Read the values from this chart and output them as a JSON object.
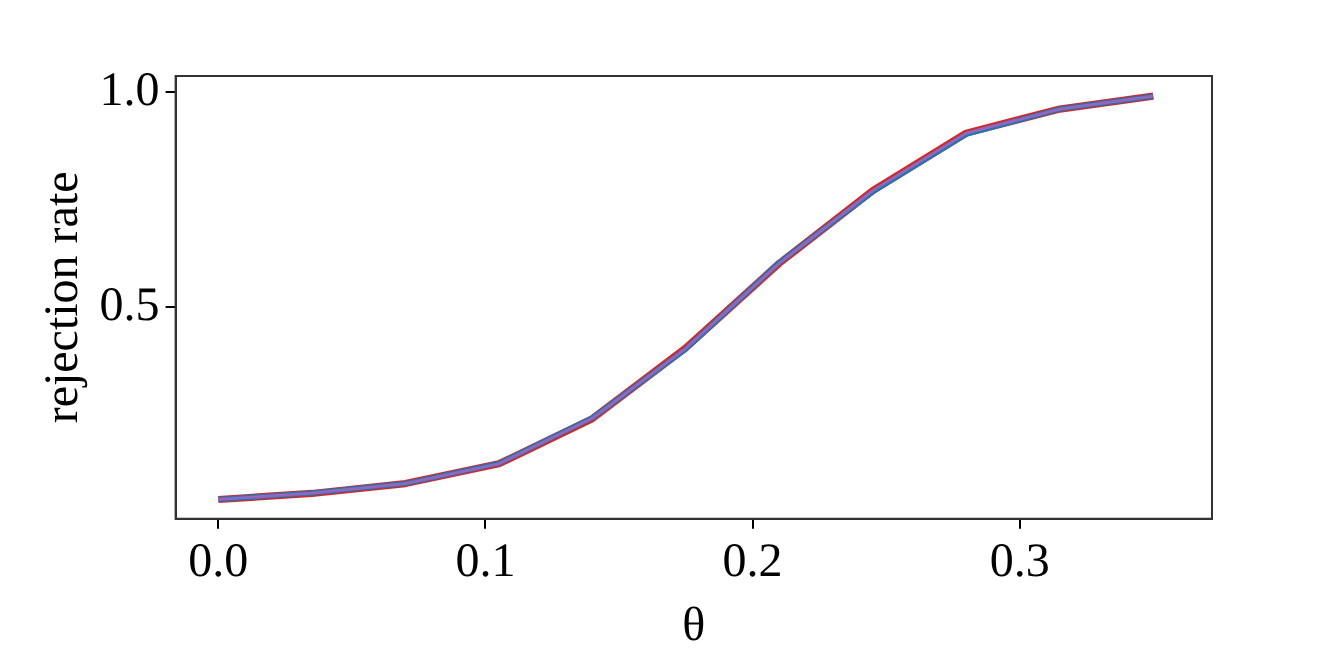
{
  "chart_data": {
    "type": "line",
    "xlabel": "θ",
    "ylabel": "rejection rate",
    "x": [
      0,
      0.035,
      0.07,
      0.105,
      0.14,
      0.175,
      0.21,
      0.245,
      0.28,
      0.315,
      0.35
    ],
    "series": [
      {
        "color": "#d62728",
        "values": [
          0.052,
          0.066,
          0.089,
          0.135,
          0.24,
          0.405,
          0.602,
          0.771,
          0.905,
          0.961,
          0.991
        ]
      },
      {
        "color": "#1f77b4",
        "values": [
          0.052,
          0.067,
          0.089,
          0.136,
          0.242,
          0.402,
          0.604,
          0.768,
          0.902,
          0.961,
          0.991
        ]
      },
      {
        "color": "#9467bd",
        "values": [
          0.052,
          0.067,
          0.089,
          0.135,
          0.241,
          0.404,
          0.602,
          0.771,
          0.905,
          0.961,
          0.991
        ]
      }
    ],
    "xlim": [
      -0.016,
      0.372
    ],
    "xticks": [
      {
        "value": 0,
        "label": "0.0"
      },
      0.1,
      0.2,
      0.3
    ],
    "ylim": [
      0.007,
      1.038
    ],
    "yticks": [
      0.5,
      {
        "value": 1,
        "label": "1.0"
      }
    ],
    "grid": false,
    "legend": false,
    "marker": "none",
    "line_style": "solid"
  }
}
